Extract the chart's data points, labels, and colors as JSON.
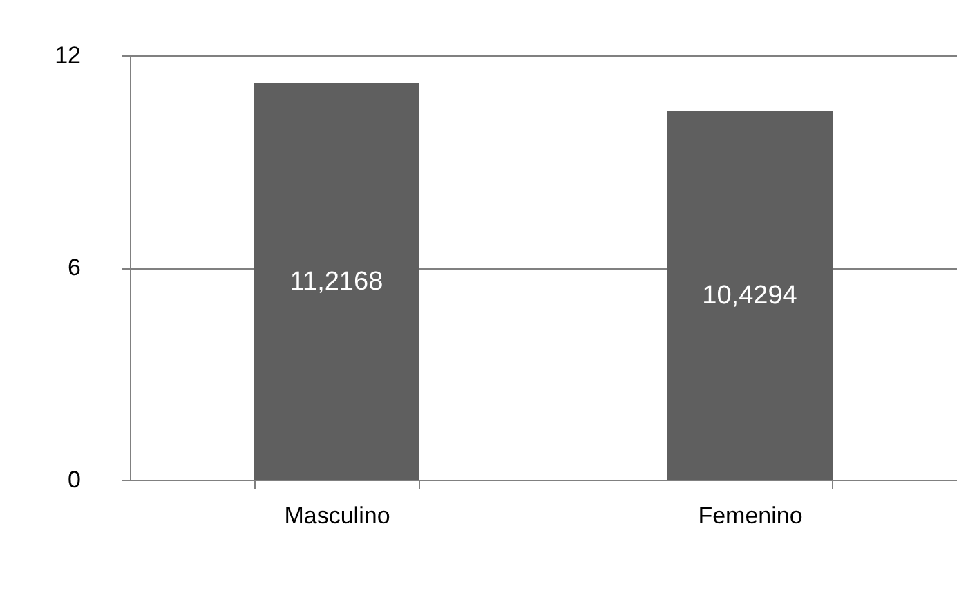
{
  "chart_data": {
    "type": "bar",
    "categories": [
      "Masculino",
      "Femenino"
    ],
    "values": [
      11.2168,
      10.4294
    ],
    "value_labels": [
      "11,2168",
      "10,4294"
    ],
    "color": "#5f5f5f",
    "ylim": [
      0,
      12
    ],
    "yticks": [
      0,
      6,
      12
    ],
    "grid": "y"
  }
}
